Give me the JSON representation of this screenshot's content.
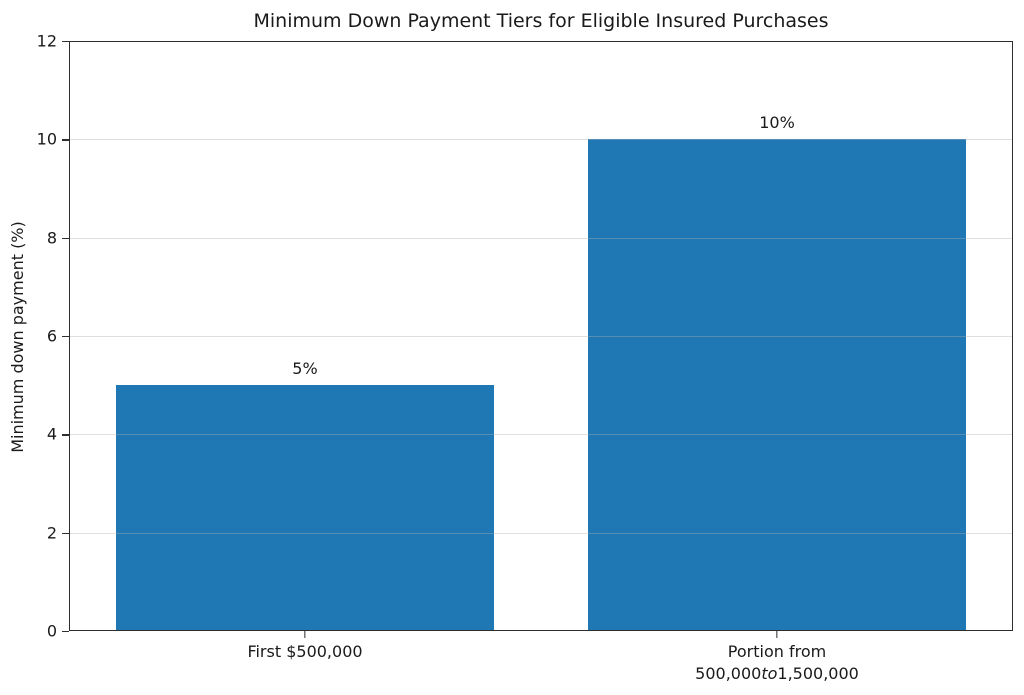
{
  "chart_data": {
    "type": "bar",
    "title": "Minimum Down Payment Tiers for Eligible Insured Purchases",
    "xlabel": "",
    "ylabel": "Minimum down payment (%)",
    "ylim": [
      0,
      12
    ],
    "yticks": [
      0,
      2,
      4,
      6,
      8,
      10,
      12
    ],
    "grid": "horizontal",
    "legend": "none",
    "categories": [
      "First $500,000",
      "Portion from 500,000to1,500,000"
    ],
    "values": [
      5,
      10
    ],
    "bar_value_labels": [
      "5%",
      "10%"
    ],
    "bar_color": "#1f77b4",
    "grid_color_rgba": "rgba(176,176,176,0.4)",
    "categories_rich": [
      {
        "lines": [
          [
            {
              "text": "First $500,000",
              "italic": false
            }
          ]
        ]
      },
      {
        "lines": [
          [
            {
              "text": "Portion from",
              "italic": false
            }
          ],
          [
            {
              "text": "500,000",
              "italic": false
            },
            {
              "text": "to",
              "italic": true
            },
            {
              "text": "1,500,000",
              "italic": false
            }
          ]
        ]
      }
    ]
  }
}
